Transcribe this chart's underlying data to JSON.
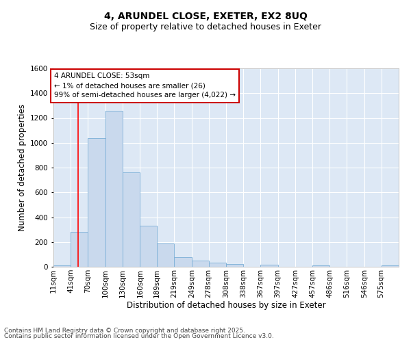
{
  "title": "4, ARUNDEL CLOSE, EXETER, EX2 8UQ",
  "subtitle": "Size of property relative to detached houses in Exeter",
  "xlabel": "Distribution of detached houses by size in Exeter",
  "ylabel": "Number of detached properties",
  "bar_color": "#c9d9ed",
  "bar_edge_color": "#7aaed6",
  "background_color": "#dde8f5",
  "grid_color": "#ffffff",
  "annotation_box_edge_color": "#cc0000",
  "red_line_x": 53,
  "annotation_text": "4 ARUNDEL CLOSE: 53sqm\n← 1% of detached houses are smaller (26)\n99% of semi-detached houses are larger (4,022) →",
  "bins": [
    11,
    41,
    70,
    100,
    130,
    160,
    189,
    219,
    249,
    278,
    308,
    338,
    367,
    397,
    427,
    457,
    486,
    516,
    546,
    575,
    605
  ],
  "counts": [
    10,
    280,
    1040,
    1260,
    760,
    330,
    185,
    80,
    50,
    35,
    22,
    0,
    15,
    0,
    0,
    10,
    0,
    0,
    0,
    12
  ],
  "ylim": [
    0,
    1600
  ],
  "yticks": [
    0,
    200,
    400,
    600,
    800,
    1000,
    1200,
    1400,
    1600
  ],
  "footnote1": "Contains HM Land Registry data © Crown copyright and database right 2025.",
  "footnote2": "Contains public sector information licensed under the Open Government Licence v3.0.",
  "title_fontsize": 10,
  "subtitle_fontsize": 9,
  "axis_label_fontsize": 8.5,
  "tick_fontsize": 7.5,
  "annotation_fontsize": 7.5,
  "footnote_fontsize": 6.5
}
